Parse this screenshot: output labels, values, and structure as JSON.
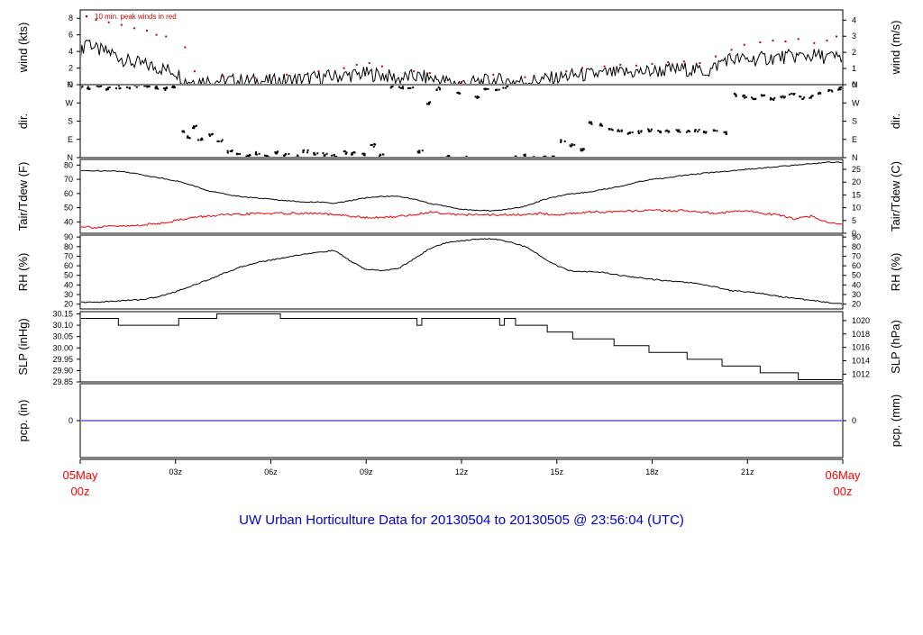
{
  "colors": {
    "frame": "#000000",
    "main_line": "#000000",
    "peak": "#cc0000",
    "dewpoint": "#ee0000",
    "precip": "#0000cc",
    "title": "#0000cc",
    "time_edge_label": "#ff0000"
  },
  "chart_data": {
    "type": "line",
    "title": "UW Urban Horticulture Data for 20130504  to  20130505 @ 23:56:04  (UTC)",
    "x_axis": {
      "unit": "hours since 05May 00z",
      "range": [
        0,
        24
      ],
      "ticks": [
        {
          "hour": 0,
          "label": "05May",
          "sublabel": "00z",
          "edge": true
        },
        {
          "hour": 3,
          "label": "03z"
        },
        {
          "hour": 6,
          "label": "06z"
        },
        {
          "hour": 9,
          "label": "09z"
        },
        {
          "hour": 12,
          "label": "12z"
        },
        {
          "hour": 15,
          "label": "15z"
        },
        {
          "hour": 18,
          "label": "18z"
        },
        {
          "hour": 21,
          "label": "21z"
        },
        {
          "hour": 24,
          "label": "06May",
          "sublabel": "00z",
          "edge": true
        }
      ]
    },
    "panels": [
      {
        "id": "wind",
        "ylabel_left": "wind (kts)",
        "ylabel_right": "wind (m/s)",
        "note": "10 min. peak winds in red",
        "ylim": [
          0,
          9
        ],
        "left_ticks": [
          0,
          2,
          4,
          6,
          8
        ],
        "right_ticks": [
          0,
          1,
          2,
          3,
          4
        ],
        "right_scale_per_left_unit": 0.5144,
        "series": [
          {
            "role": "mean",
            "style": "line",
            "x": [
              0,
              0.2,
              0.5,
              1,
              1.5,
              2,
              2.5,
              3,
              3.3,
              4,
              5,
              6,
              7,
              8,
              9,
              9.5,
              10,
              10.5,
              11,
              11.5,
              12,
              13,
              14,
              15,
              15.5,
              16,
              17,
              18,
              19,
              19.8,
              20.3,
              21,
              22,
              23,
              24
            ],
            "y": [
              3.5,
              5.6,
              4.2,
              3.8,
              2.8,
              2.4,
              2.0,
              1.6,
              0.5,
              0.5,
              0.5,
              0.4,
              0.7,
              1.0,
              1.3,
              1.2,
              0.7,
              1.0,
              0.8,
              0.4,
              0.1,
              0.5,
              0.4,
              0.8,
              1.1,
              1.2,
              1.4,
              1.6,
              1.9,
              1.6,
              3.1,
              3.0,
              3.3,
              3.5,
              3.2
            ]
          },
          {
            "role": "peak",
            "style": "points",
            "x": [
              0.2,
              0.5,
              0.9,
              1.3,
              1.7,
              2.1,
              2.4,
              2.7,
              3.3,
              3.6,
              4.5,
              5.5,
              6.5,
              7.5,
              8.3,
              8.7,
              9.1,
              9.5,
              10.5,
              11,
              12,
              13,
              14,
              15.3,
              15.8,
              16.5,
              17,
              17.5,
              18,
              18.5,
              19,
              19.5,
              20,
              20.5,
              20.9,
              21.4,
              21.8,
              22.2,
              22.6,
              23.1,
              23.5,
              23.8
            ],
            "y": [
              8.2,
              7.8,
              7.5,
              7.2,
              6.8,
              6.5,
              6.0,
              5.8,
              4.5,
              1.6,
              1.0,
              0.8,
              1.2,
              1.6,
              2.0,
              2.4,
              2.6,
              2.2,
              1.6,
              1.4,
              0.3,
              1.2,
              0.9,
              1.6,
              2.0,
              2.2,
              2.4,
              2.3,
              2.5,
              2.7,
              2.8,
              2.6,
              3.4,
              4.2,
              4.8,
              5.1,
              5.3,
              5.2,
              5.5,
              5.0,
              5.3,
              5.8
            ]
          }
        ]
      },
      {
        "id": "dir",
        "ylabel_left": "dir.",
        "ylabel_right": "dir.",
        "ylim": [
          0,
          360
        ],
        "left_ticks": [
          {
            "v": 0,
            "label": "N"
          },
          {
            "v": 90,
            "label": "E"
          },
          {
            "v": 180,
            "label": "S"
          },
          {
            "v": 270,
            "label": "W"
          },
          {
            "v": 360,
            "label": "N"
          }
        ],
        "right_ticks": [
          {
            "v": 0,
            "label": "N"
          },
          {
            "v": 90,
            "label": "E"
          },
          {
            "v": 180,
            "label": "S"
          },
          {
            "v": 270,
            "label": "W"
          },
          {
            "v": 360,
            "label": "N"
          }
        ],
        "series": [
          {
            "role": "direction",
            "style": "points",
            "x": [
              0.0,
              0.3,
              0.6,
              0.9,
              1.2,
              1.5,
              1.8,
              2.1,
              2.4,
              2.7,
              2.9,
              3.2,
              3.4,
              3.6,
              3.8,
              4.1,
              4.4,
              4.7,
              5.0,
              5.3,
              5.6,
              5.9,
              6.2,
              6.5,
              6.8,
              7.1,
              7.4,
              7.7,
              8.0,
              8.3,
              8.6,
              8.9,
              9.2,
              9.5,
              9.8,
              10.1,
              10.4,
              10.7,
              11.0,
              11.3,
              11.6,
              11.9,
              12.2,
              12.5,
              12.8,
              13.1,
              13.4,
              13.7,
              14.0,
              14.3,
              14.6,
              14.9,
              15.2,
              15.5,
              15.8,
              16.1,
              16.4,
              16.7,
              17.0,
              17.3,
              17.6,
              17.9,
              18.2,
              18.5,
              18.8,
              19.1,
              19.4,
              19.7,
              20.0,
              20.3,
              20.6,
              20.9,
              21.2,
              21.5,
              21.8,
              22.1,
              22.4,
              22.7,
              23.0,
              23.3,
              23.6,
              23.9
            ],
            "y": [
              350,
              345,
              352,
              340,
              348,
              342,
              355,
              350,
              345,
              340,
              352,
              130,
              100,
              150,
              90,
              110,
              80,
              30,
              15,
              10,
              20,
              5,
              25,
              12,
              8,
              30,
              18,
              15,
              10,
              25,
              20,
              15,
              60,
              10,
              350,
              345,
              340,
              30,
              270,
              340,
              5,
              320,
              0,
              300,
              340,
              330,
              350,
              5,
              10,
              0,
              2,
              5,
              80,
              60,
              40,
              170,
              160,
              140,
              130,
              120,
              125,
              135,
              130,
              128,
              132,
              126,
              134,
              124,
              130,
              120,
              310,
              300,
              295,
              305,
              290,
              300,
              310,
              295,
              300,
              320,
              330,
              340
            ]
          }
        ]
      },
      {
        "id": "temp",
        "ylabel_left": "Tair/Tdew (F)",
        "ylabel_right": "Tair/Tdew (C)",
        "ylim": [
          32,
          84
        ],
        "left_ticks": [
          40,
          50,
          60,
          70,
          80
        ],
        "right_ticks": [
          0,
          5,
          10,
          15,
          20,
          25
        ],
        "right_axis_conversion": "F_to_C",
        "series": [
          {
            "role": "air_temperature",
            "style": "line",
            "x": [
              0,
              0.5,
              1,
              1.5,
              2,
              2.5,
              3,
              3.5,
              4,
              4.5,
              5,
              5.5,
              6,
              6.5,
              7,
              7.5,
              8,
              8.5,
              9,
              9.5,
              10,
              10.5,
              11,
              11.5,
              12,
              12.5,
              13,
              13.5,
              14,
              14.5,
              15,
              15.5,
              16,
              16.5,
              17,
              17.5,
              18,
              18.5,
              19,
              19.5,
              20,
              20.5,
              21,
              21.5,
              22,
              22.5,
              23,
              23.5,
              24
            ],
            "y": [
              76,
              76,
              76,
              75,
              73,
              71,
              69,
              66,
              62,
              60,
              58,
              57,
              56,
              55,
              54,
              54,
              53,
              55,
              57,
              58,
              58,
              56,
              53,
              51,
              49,
              48,
              48,
              49,
              51,
              55,
              58,
              60,
              61,
              63,
              65,
              68,
              70,
              71,
              73,
              74,
              75,
              76,
              77,
              78,
              79,
              80,
              81,
              82,
              82
            ]
          },
          {
            "role": "dew_point",
            "style": "line",
            "x": [
              0,
              0.5,
              1,
              1.5,
              2,
              2.5,
              3,
              3.5,
              4,
              4.5,
              5,
              5.5,
              6,
              6.5,
              7,
              7.5,
              8,
              8.5,
              9,
              9.5,
              10,
              10.5,
              11,
              11.5,
              12,
              12.5,
              13,
              13.5,
              14,
              14.5,
              15,
              15.5,
              16,
              16.5,
              17,
              17.5,
              18,
              18.5,
              19,
              19.5,
              20,
              20.5,
              21,
              21.5,
              22,
              22.5,
              23,
              23.5,
              24
            ],
            "y": [
              37,
              36,
              37,
              37,
              38,
              39,
              41,
              43,
              44,
              45,
              45,
              46,
              46,
              46,
              46,
              46,
              45,
              44,
              43,
              43,
              44,
              45,
              47,
              46,
              45,
              45,
              45,
              45,
              45,
              46,
              45,
              46,
              47,
              47,
              47,
              48,
              48,
              48,
              48,
              47,
              46,
              47,
              48,
              46,
              45,
              42,
              44,
              40,
              38
            ]
          }
        ]
      },
      {
        "id": "rh",
        "ylabel_left": "RH (%)",
        "ylabel_right": "RH (%)",
        "ylim": [
          15,
          92
        ],
        "left_ticks": [
          20,
          30,
          40,
          50,
          60,
          70,
          80,
          90
        ],
        "right_ticks": [
          20,
          30,
          40,
          50,
          60,
          70,
          80,
          90
        ],
        "series": [
          {
            "role": "relative_humidity",
            "style": "line",
            "x": [
              0,
              0.5,
              1,
              1.5,
              2,
              2.5,
              3,
              3.5,
              4,
              4.5,
              5,
              5.5,
              6,
              6.5,
              7,
              7.5,
              8,
              8.5,
              9,
              9.5,
              10,
              10.5,
              11,
              11.5,
              12,
              12.5,
              13,
              13.5,
              14,
              14.5,
              15,
              15.5,
              16,
              16.5,
              17,
              17.5,
              18,
              18.5,
              19,
              19.5,
              20,
              20.5,
              21,
              21.5,
              22,
              22.5,
              23,
              23.5,
              24
            ],
            "y": [
              22,
              22,
              23,
              24,
              25,
              28,
              33,
              39,
              45,
              52,
              58,
              63,
              66,
              69,
              72,
              74,
              76,
              65,
              56,
              55,
              57,
              67,
              78,
              84,
              86,
              88,
              88,
              85,
              80,
              70,
              60,
              54,
              54,
              53,
              50,
              48,
              46,
              44,
              43,
              41,
              38,
              34,
              33,
              31,
              28,
              26,
              24,
              22,
              20
            ]
          }
        ]
      },
      {
        "id": "slp",
        "ylabel_left": "SLP (inHg)",
        "ylabel_right": "SLP (hPa)",
        "ylim": [
          29.85,
          30.16
        ],
        "left_ticks": [
          "29.85",
          "29.90",
          "29.95",
          "30.00",
          "30.05",
          "30.10",
          "30.15"
        ],
        "right_ticks": [
          1012,
          1014,
          1016,
          1018,
          1020
        ],
        "right_axis_conversion": "inHg_to_hPa",
        "series": [
          {
            "role": "sea_level_pressure",
            "style": "step",
            "x": [
              0,
              1.2,
              3.1,
              4.3,
              6.3,
              10.6,
              10.75,
              13.2,
              13.35,
              13.7,
              14.7,
              15.5,
              16.8,
              17.9,
              19.1,
              20.2,
              21.4,
              22.6,
              23.8,
              24
            ],
            "y": [
              30.13,
              30.1,
              30.13,
              30.15,
              30.13,
              30.1,
              30.13,
              30.1,
              30.13,
              30.1,
              30.07,
              30.04,
              30.01,
              29.98,
              29.95,
              29.92,
              29.89,
              29.86,
              29.86,
              29.86
            ]
          }
        ]
      },
      {
        "id": "precip",
        "ylabel_left": "pcp. (in)",
        "ylabel_right": "pcp. (mm)",
        "ylim": [
          -1,
          1
        ],
        "left_ticks": [
          0
        ],
        "right_ticks": [
          0
        ],
        "series": [
          {
            "role": "precipitation",
            "style": "line",
            "x": [
              0,
              24
            ],
            "y": [
              0,
              0
            ]
          }
        ]
      }
    ]
  }
}
